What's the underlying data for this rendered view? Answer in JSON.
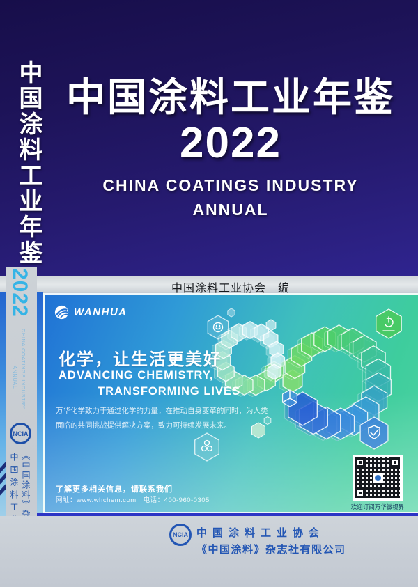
{
  "spine": {
    "title_vertical": "中国涂料工业年鉴",
    "year": "2022",
    "subtitle_en_line1": "CHINA COATINGS INDUSTRY",
    "subtitle_en_line2": "ANNUAL",
    "logo_text": "NCIA",
    "publisher": "《中国涂料》杂志社有限公司",
    "org_name": "中国涂料工业协会"
  },
  "cover": {
    "title": "中国涂料工业年鉴",
    "year": "2022",
    "subtitle_en_line1": "CHINA COATINGS INDUSTRY",
    "subtitle_en_line2": "ANNUAL",
    "editor_line": "中国涂料工业协会　编"
  },
  "ad_banner": {
    "brand": "WANHUA",
    "headline_cn": "化学，让生活更美好",
    "headline_en_line1": "ADVANCING CHEMISTRY,",
    "headline_en_line2": "TRANSFORMING LIVES",
    "body_line1": "万华化学致力于通过化学的力量，在推动自身变革的同时，为人类",
    "body_line2": "面临的共同挑战提供解决方案，致力可持续发展未来。",
    "contact_label": "了解更多相关信息，请联系我们",
    "contact_info": "网址：www.whchem.com　电话：400-960-0305",
    "qr_caption": "欢迎订阅万华微视界"
  },
  "footer": {
    "logo_text": "NCIA",
    "org_name": "中国涂料工业协会",
    "publisher": "《中国涂料》杂志社有限公司"
  },
  "colors": {
    "cover_navy": "#221968",
    "spine_year_cyan": "#35b4e6",
    "spine_text_blue": "#2456aa",
    "footer_blue": "#2356b4",
    "banner_blue": "#2072d5",
    "banner_green": "#3ecd9d",
    "separator_blue": "#2c35c5"
  }
}
